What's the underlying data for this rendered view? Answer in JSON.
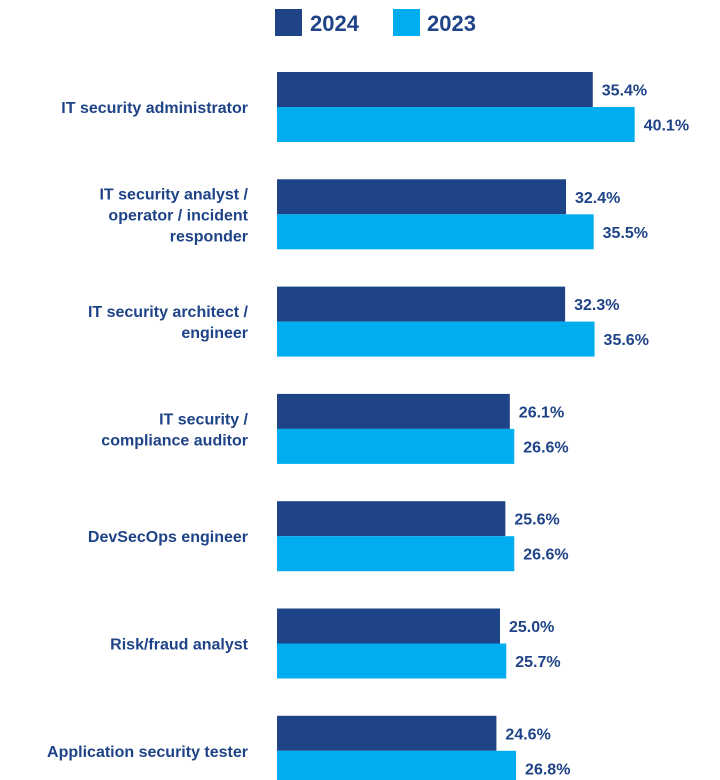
{
  "colors": {
    "series_2024": "#1e4387",
    "series_2023": "#00aeef",
    "text": "#1e4387"
  },
  "chart_data": {
    "type": "bar",
    "orientation": "horizontal",
    "title": "",
    "xlabel": "",
    "ylabel": "",
    "grid": false,
    "legend_position": "top",
    "value_suffix": "%",
    "categories": [
      [
        "IT security administrator"
      ],
      [
        "IT security analyst /",
        "operator / incident",
        "responder"
      ],
      [
        "IT security architect /",
        "engineer"
      ],
      [
        "IT security /",
        "compliance auditor"
      ],
      [
        "DevSecOps engineer"
      ],
      [
        "Risk/fraud analyst"
      ],
      [
        "Application security tester"
      ]
    ],
    "series": [
      {
        "name": "2024",
        "color": "#1e4387",
        "values": [
          35.4,
          32.4,
          32.3,
          26.1,
          25.6,
          25.0,
          24.6
        ],
        "labels": [
          "35.4%",
          "32.4%",
          "32.3%",
          "26.1%",
          "25.6%",
          "25.0%",
          "24.6%"
        ]
      },
      {
        "name": "2023",
        "color": "#00aeef",
        "values": [
          40.1,
          35.5,
          35.6,
          26.6,
          26.6,
          25.7,
          26.8
        ],
        "labels": [
          "40.1%",
          "35.5%",
          "35.6%",
          "26.6%",
          "26.6%",
          "25.7%",
          "26.8%"
        ]
      }
    ]
  }
}
